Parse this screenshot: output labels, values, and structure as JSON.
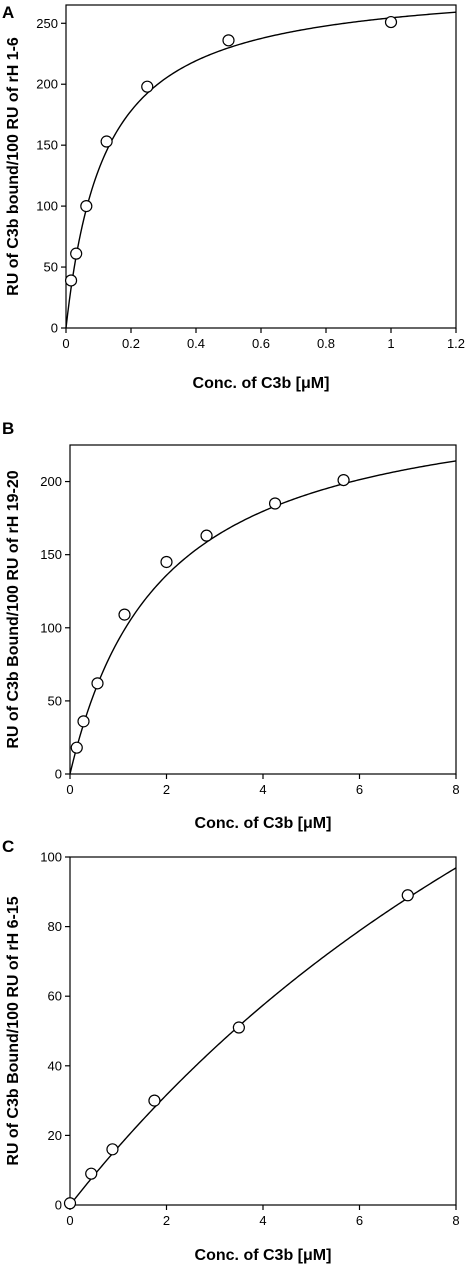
{
  "chart_data": [
    {
      "type": "scatter",
      "panel_label": "A",
      "xlabel": "Conc. of C3b [μM]",
      "ylabel": "RU of C3b bound/100 RU of rH 1-6",
      "xlim": [
        0,
        1.2
      ],
      "ylim": [
        0,
        265
      ],
      "xticks": [
        0,
        0.2,
        0.4,
        0.6,
        0.8,
        1,
        1.2
      ],
      "xtick_labels": [
        "0",
        "0.2",
        "0.4",
        "0.6",
        "0.8",
        "1",
        "1.2"
      ],
      "yticks": [
        0,
        50,
        100,
        150,
        200,
        250
      ],
      "ytick_labels": [
        "0",
        "50",
        "100",
        "150",
        "200",
        "250"
      ],
      "grid": false,
      "points": [
        {
          "x": 0.0156,
          "y": 39
        },
        {
          "x": 0.0313,
          "y": 61
        },
        {
          "x": 0.0625,
          "y": 100
        },
        {
          "x": 0.125,
          "y": 153
        },
        {
          "x": 0.25,
          "y": 198
        },
        {
          "x": 0.5,
          "y": 236
        },
        {
          "x": 1.0,
          "y": 251
        }
      ],
      "fit": {
        "model": "one-site binding",
        "bmax": 285,
        "kd": 0.12
      }
    },
    {
      "type": "scatter",
      "panel_label": "B",
      "xlabel": "Conc. of C3b [μM]",
      "ylabel": "RU of C3b Bound/100 RU of  rH 19-20",
      "xlim": [
        0,
        8
      ],
      "ylim": [
        0,
        225
      ],
      "xticks": [
        0,
        2,
        4,
        6,
        8
      ],
      "xtick_labels": [
        "0",
        "2",
        "4",
        "6",
        "8"
      ],
      "yticks": [
        0,
        50,
        100,
        150,
        200
      ],
      "ytick_labels": [
        "0",
        "50",
        "100",
        "150",
        "200"
      ],
      "grid": false,
      "points": [
        {
          "x": 0.14,
          "y": 18
        },
        {
          "x": 0.28,
          "y": 36
        },
        {
          "x": 0.57,
          "y": 62
        },
        {
          "x": 1.13,
          "y": 109
        },
        {
          "x": 2.0,
          "y": 145
        },
        {
          "x": 2.83,
          "y": 163
        },
        {
          "x": 4.25,
          "y": 185
        },
        {
          "x": 5.67,
          "y": 201
        }
      ],
      "fit": {
        "model": "one-site binding",
        "bmax": 265,
        "kd": 1.9
      }
    },
    {
      "type": "scatter",
      "panel_label": "C",
      "xlabel": "Conc. of C3b [μM]",
      "ylabel": "RU of C3b Bound/100 RU of rH 6-15",
      "xlim": [
        0,
        8
      ],
      "ylim": [
        0,
        100
      ],
      "xticks": [
        0,
        2,
        4,
        6,
        8
      ],
      "xtick_labels": [
        "0",
        "2",
        "4",
        "6",
        "8"
      ],
      "yticks": [
        0,
        20,
        40,
        60,
        80,
        100
      ],
      "ytick_labels": [
        "0",
        "20",
        "40",
        "60",
        "80",
        "100"
      ],
      "grid": false,
      "points": [
        {
          "x": 0.0,
          "y": 0.5
        },
        {
          "x": 0.44,
          "y": 9
        },
        {
          "x": 0.88,
          "y": 16
        },
        {
          "x": 1.75,
          "y": 30
        },
        {
          "x": 3.5,
          "y": 51
        },
        {
          "x": 7.0,
          "y": 89
        }
      ],
      "fit": {
        "model": "one-site binding",
        "bmax": 310,
        "kd": 17.6
      }
    }
  ]
}
